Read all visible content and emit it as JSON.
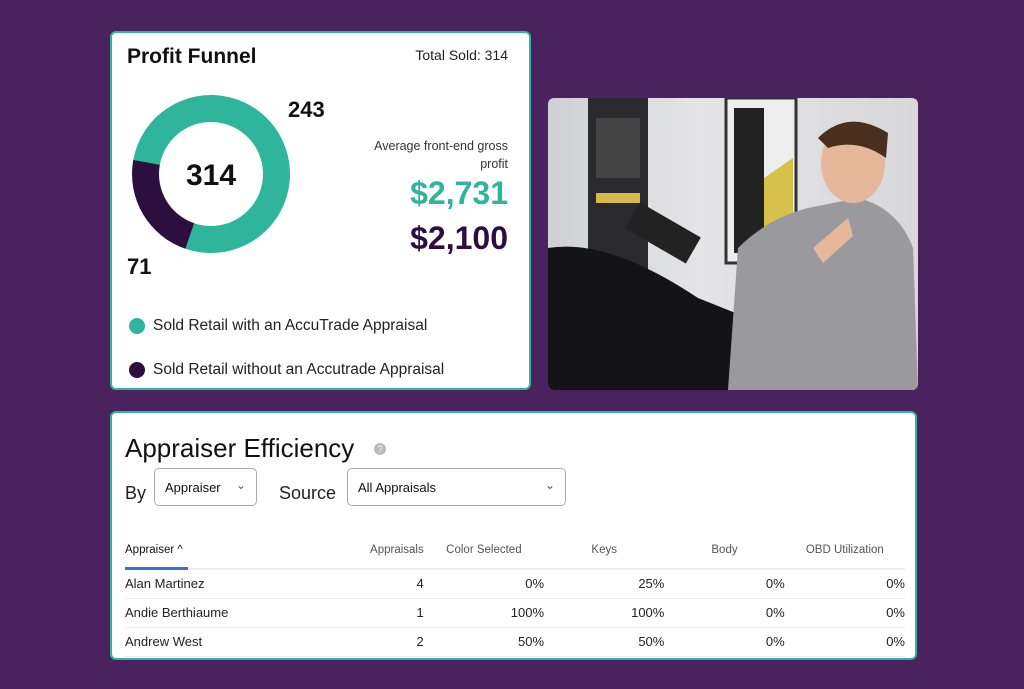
{
  "funnel": {
    "title": "Profit Funnel",
    "total_label": "Total Sold: 314",
    "center_value": "314",
    "avg_label": "Average front-end gross profit",
    "avg_with": "$2,731",
    "avg_without": "$2,100",
    "legend": [
      {
        "label": "Sold Retail with an AccuTrade Appraisal",
        "color": "#2fb59c"
      },
      {
        "label": "Sold Retail without an Accutrade Appraisal",
        "color": "#2c0f3f"
      }
    ]
  },
  "chart_data": {
    "type": "pie",
    "title": "Profit Funnel",
    "center_label": "314",
    "slices": [
      {
        "label": "Sold Retail with an AccuTrade Appraisal",
        "value": 243,
        "display": "243",
        "color": "#2fb59c"
      },
      {
        "label": "Sold Retail without an Accutrade Appraisal",
        "value": 71,
        "display": "71",
        "color": "#2c0f3f"
      }
    ]
  },
  "efficiency": {
    "title": "Appraiser Efficiency",
    "help_icon": "?",
    "by_label": "By",
    "by_value": "Appraiser",
    "source_label": "Source",
    "source_value": "All Appraisals",
    "columns": [
      "Appraiser ^",
      "Appraisals",
      "Color Selected",
      "Keys",
      "Body",
      "OBD Utilization"
    ],
    "rows": [
      [
        "Alan Martinez",
        "4",
        "0%",
        "25%",
        "0%",
        "0%"
      ],
      [
        "Andie Berthiaume",
        "1",
        "100%",
        "100%",
        "0%",
        "0%"
      ],
      [
        "Andrew West",
        "2",
        "50%",
        "50%",
        "0%",
        "0%"
      ]
    ]
  }
}
